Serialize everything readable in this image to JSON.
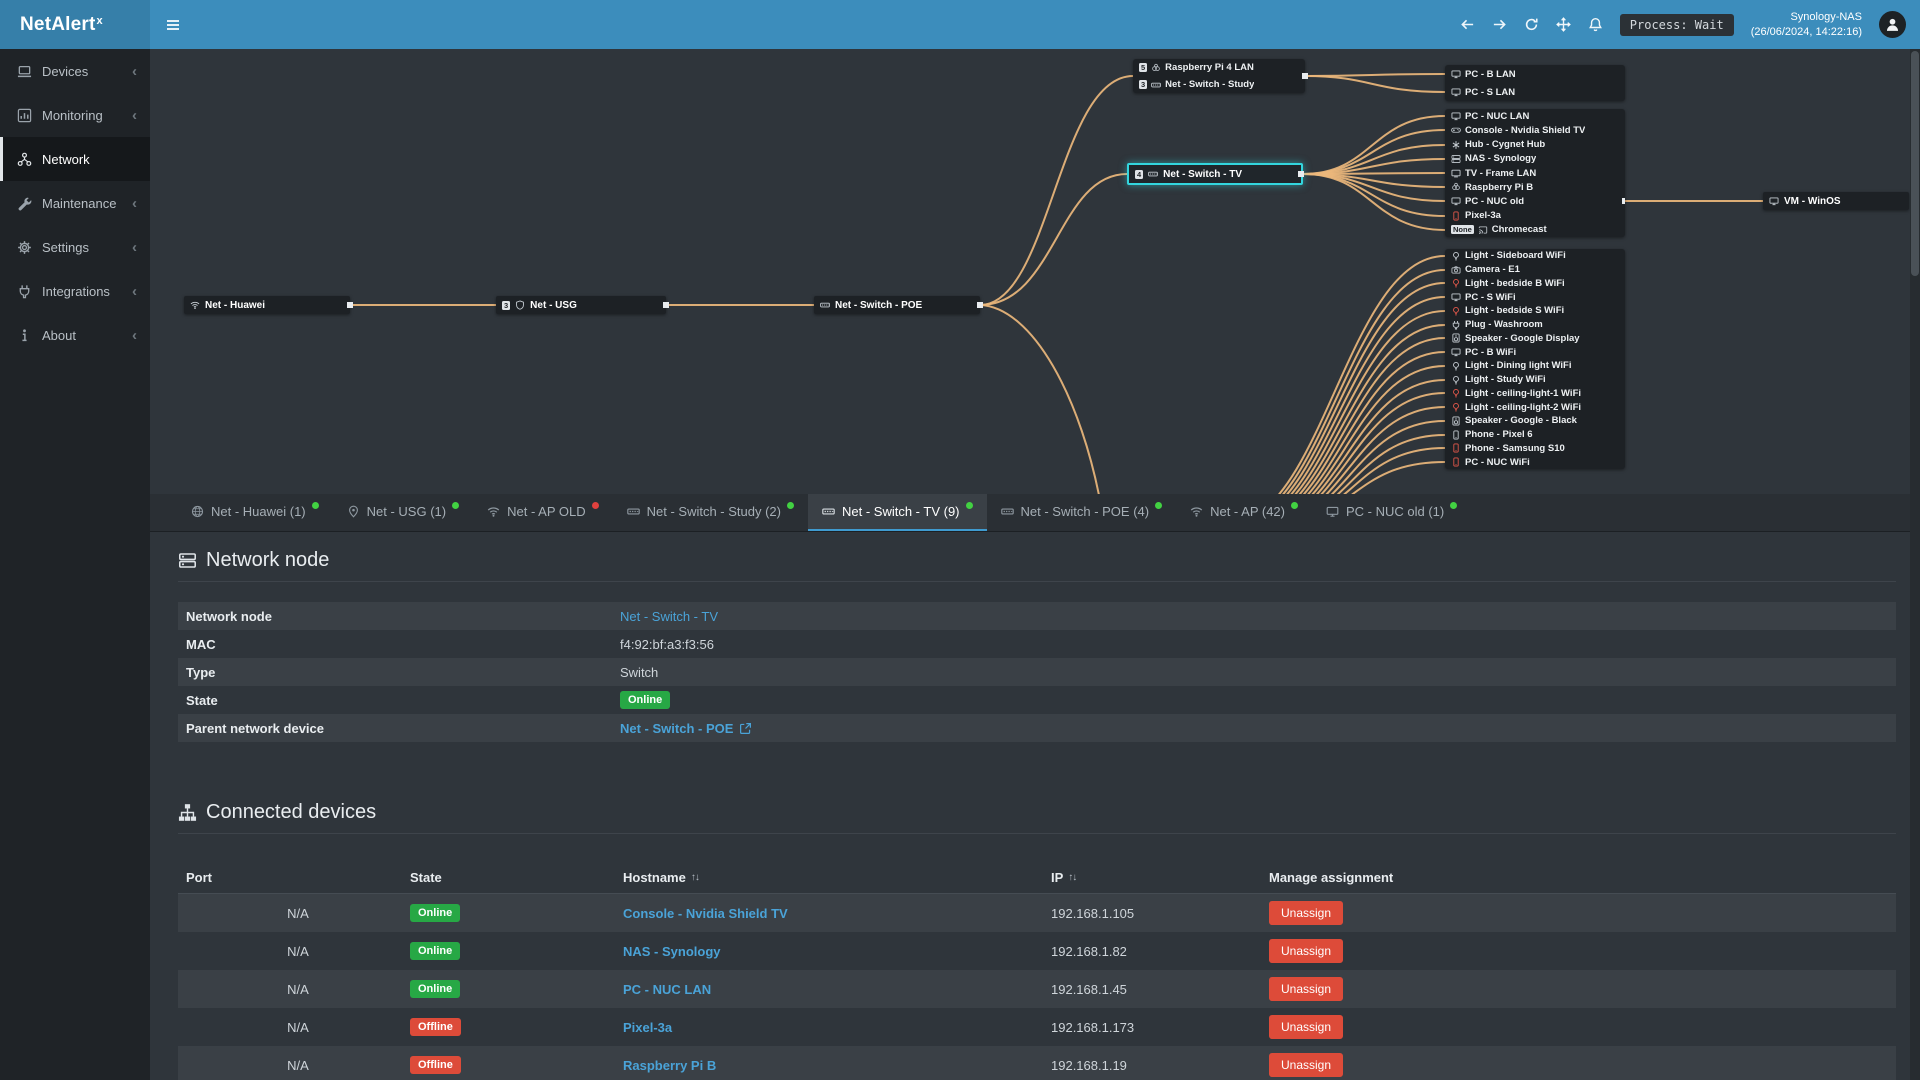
{
  "app": {
    "title": "NetAlert",
    "title_sup": "x"
  },
  "icons": {
    "sort": "↑↓",
    "chevron": "‹"
  },
  "topbar": {
    "process_badge": "Process: Wait",
    "host_name": "Synology-NAS",
    "host_time": "(26/06/2024, 14:22:16)"
  },
  "sidebar": {
    "items": [
      {
        "label": "Devices",
        "icon": "devices"
      },
      {
        "label": "Monitoring",
        "icon": "monitoring"
      },
      {
        "label": "Network",
        "icon": "network",
        "sel": "active"
      },
      {
        "label": "Maintenance",
        "icon": "wrench"
      },
      {
        "label": "Settings",
        "icon": "gear"
      },
      {
        "label": "Integrations",
        "icon": "plug"
      },
      {
        "label": "About",
        "icon": "info"
      }
    ]
  },
  "topology": {
    "nodes": {
      "huawei": {
        "label": "Net - Huawei",
        "icon": "wifi"
      },
      "usg": {
        "label": "Net - USG",
        "icon": "shield",
        "port": "3"
      },
      "poe": {
        "label": "Net - Switch - POE",
        "icon": "switch"
      },
      "tv": {
        "label": "Net - Switch - TV",
        "icon": "switch",
        "port": "4"
      },
      "vm": {
        "label": "VM - WinOS",
        "icon": "monitor"
      }
    },
    "study_group": [
      {
        "label": "Raspberry Pi 4 LAN",
        "icon": "pi",
        "port": "5"
      },
      {
        "label": "Net - Switch - Study",
        "icon": "switch",
        "port": "3"
      }
    ],
    "lan_group": [
      {
        "label": "PC - B LAN",
        "icon": "monitor"
      },
      {
        "label": "PC - S LAN",
        "icon": "monitor"
      }
    ],
    "tv_group": [
      {
        "label": "PC - NUC LAN",
        "icon": "monitor"
      },
      {
        "label": "Console - Nvidia Shield TV",
        "icon": "console"
      },
      {
        "label": "Hub - Cygnet Hub",
        "icon": "hub"
      },
      {
        "label": "NAS - Synology",
        "icon": "nas"
      },
      {
        "label": "TV - Frame LAN",
        "icon": "tv"
      },
      {
        "label": "Raspberry Pi B",
        "icon": "pi"
      },
      {
        "label": "PC - NUC old",
        "icon": "monitor"
      },
      {
        "label": "Pixel-3a",
        "icon": "phone",
        "tone": "warn"
      },
      {
        "label": "Chromecast",
        "icon": "cast",
        "port": "None"
      }
    ],
    "wifi_group": [
      {
        "label": "Light - Sideboard WiFi",
        "icon": "bulb"
      },
      {
        "label": "Camera - E1",
        "icon": "camera"
      },
      {
        "label": "Light - bedside B WiFi",
        "icon": "bulb",
        "tone": "warn"
      },
      {
        "label": "PC - S WiFi",
        "icon": "monitor"
      },
      {
        "label": "Light - bedside S WiFi",
        "icon": "bulb",
        "tone": "warn"
      },
      {
        "label": "Plug - Washroom",
        "icon": "plug"
      },
      {
        "label": "Speaker - Google Display",
        "icon": "speaker"
      },
      {
        "label": "PC - B WiFi",
        "icon": "monitor"
      },
      {
        "label": "Light - Dining light WiFi",
        "icon": "bulb"
      },
      {
        "label": "Light - Study WiFi",
        "icon": "bulb"
      },
      {
        "label": "Light - ceiling-light-1 WiFi",
        "icon": "bulb",
        "tone": "warn"
      },
      {
        "label": "Light - ceiling-light-2 WiFi",
        "icon": "bulb",
        "tone": "warn"
      },
      {
        "label": "Speaker - Google - Black",
        "icon": "speaker"
      },
      {
        "label": "Phone - Pixel 6",
        "icon": "phone"
      },
      {
        "label": "Phone - Samsung S10",
        "icon": "phone",
        "tone": "warn"
      },
      {
        "label": "PC - NUC WiFi",
        "icon": "phone",
        "tone": "warn"
      }
    ]
  },
  "tabs": [
    {
      "label": "Net - Huawei (1)",
      "icon": "globe",
      "dot": "green"
    },
    {
      "label": "Net - USG (1)",
      "icon": "pin",
      "dot": "green"
    },
    {
      "label": "Net - AP OLD",
      "icon": "wifi",
      "dot": "red"
    },
    {
      "label": "Net - Switch - Study (2)",
      "icon": "switch",
      "dot": "green"
    },
    {
      "label": "Net - Switch - TV (9)",
      "icon": "switch",
      "dot": "green",
      "sel": "active"
    },
    {
      "label": "Net - Switch - POE (4)",
      "icon": "switch",
      "dot": "green"
    },
    {
      "label": "Net - AP (42)",
      "icon": "wifi",
      "dot": "green"
    },
    {
      "label": "PC - NUC old (1)",
      "icon": "monitor",
      "dot": "green"
    }
  ],
  "node_panel": {
    "title": "Network node",
    "rows": [
      {
        "label": "Network node",
        "value": "Net - Switch - TV",
        "kind": "link"
      },
      {
        "label": "MAC",
        "value": "f4:92:bf:a3:f3:56",
        "kind": "text"
      },
      {
        "label": "Type",
        "value": "Switch",
        "kind": "text"
      },
      {
        "label": "State",
        "value": "Online",
        "kind": "badge",
        "state": "Online"
      },
      {
        "label": "Parent network device",
        "value": "Net - Switch - POE",
        "kind": "link",
        "extc": "show"
      }
    ]
  },
  "connected": {
    "title": "Connected devices",
    "headers": {
      "port": "Port",
      "state": "State",
      "hostname": "Hostname",
      "ip": "IP",
      "manage": "Manage assignment"
    },
    "action_label": "Unassign",
    "rows": [
      {
        "port": "N/A",
        "state": "Online",
        "hostname": "Console - Nvidia Shield TV",
        "ip": "192.168.1.105"
      },
      {
        "port": "N/A",
        "state": "Online",
        "hostname": "NAS - Synology",
        "ip": "192.168.1.82"
      },
      {
        "port": "N/A",
        "state": "Online",
        "hostname": "PC - NUC LAN",
        "ip": "192.168.1.45"
      },
      {
        "port": "N/A",
        "state": "Offline",
        "hostname": "Pixel-3a",
        "ip": "192.168.1.173"
      },
      {
        "port": "N/A",
        "state": "Offline",
        "hostname": "Raspberry Pi B",
        "ip": "192.168.1.19"
      }
    ]
  }
}
